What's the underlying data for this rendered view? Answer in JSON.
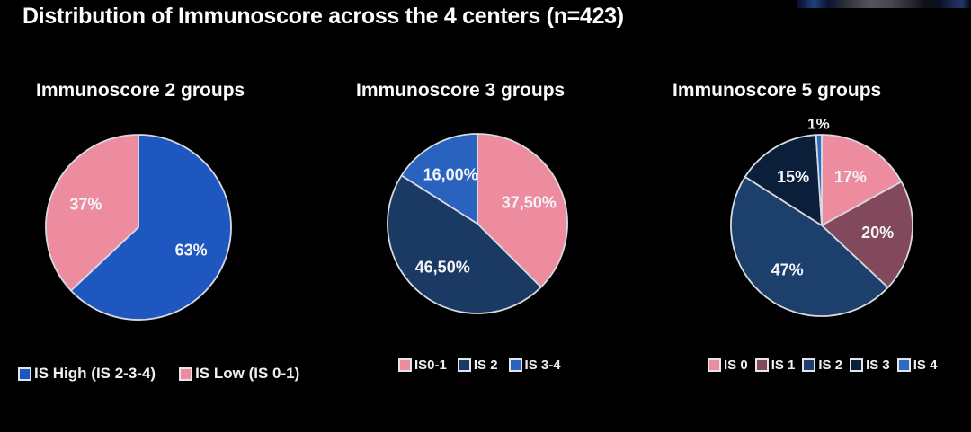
{
  "page": {
    "title": "Distribution of Immunoscore across the 4 centers (n=423)",
    "background": "#000000",
    "text_color": "#ffffff"
  },
  "chart_data": [
    {
      "type": "pie",
      "title": "Immunoscore 2 groups",
      "legend_position": "bottom",
      "slices": [
        {
          "label": "IS High (IS 2-3-4)",
          "value": 63,
          "display": "63%",
          "color": "#1f57c0"
        },
        {
          "label": "IS Low (IS 0-1)",
          "value": 37,
          "display": "37%",
          "color": "#ee8c9f"
        }
      ]
    },
    {
      "type": "pie",
      "title": "Immunoscore 3 groups",
      "legend_position": "bottom",
      "slices": [
        {
          "label": "IS0-1",
          "value": 37.5,
          "display": "37,50%",
          "color": "#ee8c9f"
        },
        {
          "label": "IS 2",
          "value": 46.5,
          "display": "46,50%",
          "color": "#1a3a63"
        },
        {
          "label": "IS 3-4",
          "value": 16.0,
          "display": "16,00%",
          "color": "#2a62c0"
        }
      ]
    },
    {
      "type": "pie",
      "title": "Immunoscore 5 groups",
      "legend_position": "bottom",
      "slices": [
        {
          "label": "IS 0",
          "value": 17,
          "display": "17%",
          "color": "#ee8c9f"
        },
        {
          "label": "IS 1",
          "value": 20,
          "display": "20%",
          "color": "#82485b"
        },
        {
          "label": "IS 2",
          "value": 47,
          "display": "47%",
          "color": "#1c3f6c"
        },
        {
          "label": "IS 3",
          "value": 15,
          "display": "15%",
          "color": "#0c1f3a"
        },
        {
          "label": "IS 4",
          "value": 1,
          "display": "1%",
          "color": "#2e6bc3"
        }
      ]
    }
  ]
}
